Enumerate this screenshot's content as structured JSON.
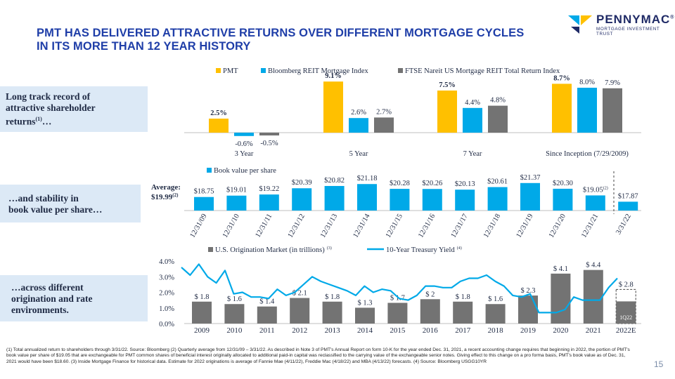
{
  "title": [
    "PMT HAS DELIVERED ATTRACTIVE RETURNS OVER DIFFERENT MORTGAGE CYCLES",
    "IN ITS MORE THAN 12 YEAR HISTORY"
  ],
  "logo": {
    "name": "PENNYMAC",
    "sup": "®",
    "sub": "MORTGAGE INVESTMENT TRUST"
  },
  "callouts": {
    "returns": [
      "Long track record of",
      "attractive shareholder",
      "returns",
      "(1)",
      "…"
    ],
    "book": [
      "…and stability in",
      "book value per share…"
    ],
    "environment": [
      "…across different",
      "origination and rate",
      "environments."
    ]
  },
  "page_number": "15",
  "footnotes": "(1) Total annualized return to shareholders through 3/31/22. Source: Bloomberg     (2) Quarterly average from 12/31/09 – 3/31/22. As described in Note 3 of PMT's Annual Report on form 10-K for the year ended Dec. 31, 2021, a recent accounting change requires that beginning in 2022, the portion of PMT's book value per share of $19.05 that are exchangeable for PMT common shares of beneficial interest originally allocated to additional paid-in capital was reclassified to the carrying value of the exchangeable senior notes. Giving effect to this change on a pro forma basis, PMT's book value as of Dec. 31, 2021 would have been $18.60.     (3) Inside Mortgage Finance for historical data. Estimate for 2022 originations is average of Fannie Mae (4/11/22), Freddie Mac (4/18/22) and MBA (4/13/22) forecasts.     (4) Source: Bloomberg USGG10YR",
  "chart_data": [
    {
      "type": "bar",
      "categories": [
        "3 Year",
        "5 Year",
        "7 Year",
        "Since Inception (7/29/2009)"
      ],
      "series": [
        {
          "name": "PMT",
          "values": [
            2.5,
            9.1,
            7.5,
            8.7
          ],
          "labels": [
            "2.5%",
            "9.1%",
            "7.5%",
            "8.7%"
          ],
          "color": "#ffc000"
        },
        {
          "name": "Bloomberg REIT Mortgage Index",
          "values": [
            -0.6,
            2.6,
            4.4,
            8.0
          ],
          "labels": [
            "-0.6%",
            "2.6%",
            "4.4%",
            "8.0%"
          ],
          "color": "#00a9e8"
        },
        {
          "name": "FTSE Nareit US Mortgage REIT Total Return Index",
          "values": [
            -0.5,
            2.7,
            4.8,
            7.9
          ],
          "labels": [
            "-0.5%",
            "2.7%",
            "4.8%",
            "7.9%"
          ],
          "color": "#737373"
        }
      ]
    },
    {
      "type": "bar",
      "series": [
        {
          "name": "Book value per share",
          "color": "#00a9e8"
        }
      ],
      "categories": [
        "12/31/09",
        "12/31/10",
        "12/31/11",
        "12/31/12",
        "12/31/13",
        "12/31/14",
        "12/31/15",
        "12/31/16",
        "12/31/17",
        "12/31/18",
        "12/31/19",
        "12/31/20",
        "12/31/21",
        "3/31/22"
      ],
      "values": [
        18.75,
        19.01,
        19.22,
        20.39,
        20.82,
        21.18,
        20.28,
        20.26,
        20.13,
        20.61,
        21.37,
        20.3,
        19.05,
        17.87
      ],
      "labels": [
        "$18.75",
        "$19.01",
        "$19.22",
        "$20.39",
        "$20.82",
        "$21.18",
        "$20.28",
        "$20.26",
        "$20.13",
        "$20.61",
        "$21.37",
        "$20.30",
        "$19.05",
        "$17.87"
      ],
      "label_sup": {
        "12": "(2)"
      },
      "average": {
        "text": "Average:",
        "value": "$19.99",
        "sup": "(2)"
      }
    },
    {
      "type": "bar",
      "series": [
        {
          "name": "U.S. Origination Market (in trillions)",
          "sup": "(3)",
          "color": "#737373"
        },
        {
          "name": "10-Year Treasury Yield",
          "sup": "(4)",
          "color": "#00a9e8"
        }
      ],
      "categories": [
        "2009",
        "2010",
        "2011",
        "2012",
        "2013",
        "2014",
        "2015",
        "2016",
        "2017",
        "2018",
        "2019",
        "2020",
        "2021",
        "2022E"
      ],
      "values": [
        1.8,
        1.6,
        1.4,
        2.1,
        1.8,
        1.3,
        1.7,
        2.0,
        1.8,
        1.6,
        2.3,
        4.1,
        4.4,
        2.8
      ],
      "labels": [
        "$ 1.8",
        "$ 1.6",
        "$ 1.4",
        "$ 2.1",
        "$ 1.8",
        "$ 1.3",
        "$ 1.7",
        "$ 2",
        "$ 1.8",
        "$ 1.6",
        "$ 2.3",
        "$ 4.1",
        "$ 4.4",
        "$ 2.8"
      ],
      "q1_2022": {
        "label": "1Q22",
        "value": 0.7
      },
      "y_axis": {
        "ticks": [
          "0.0%",
          "1.0%",
          "2.0%",
          "3.0%",
          "4.0%"
        ],
        "range": [
          0,
          4.0
        ]
      },
      "treasury_yield_quarterly": [
        3.6,
        3.1,
        3.8,
        3.0,
        2.6,
        3.4,
        1.9,
        2.0,
        1.7,
        1.7,
        1.6,
        2.2,
        1.8,
        2.0,
        2.5,
        3.0,
        2.7,
        2.5,
        2.3,
        2.1,
        1.8,
        2.4,
        2.0,
        2.2,
        2.1,
        1.6,
        1.5,
        1.8,
        2.4,
        2.4,
        2.3,
        2.3,
        2.7,
        2.9,
        2.9,
        3.1,
        2.7,
        2.4,
        1.8,
        1.7,
        1.9,
        0.7,
        0.7,
        0.7,
        0.9,
        1.7,
        1.5,
        1.5,
        1.5,
        2.3,
        2.9
      ]
    }
  ]
}
